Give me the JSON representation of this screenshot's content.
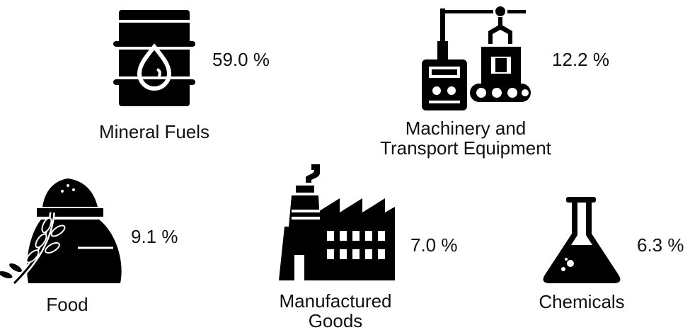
{
  "items": [
    {
      "label": [
        "Mineral Fuels"
      ],
      "value": "59.0 %"
    },
    {
      "label": [
        "Machinery and",
        "Transport Equipment"
      ],
      "value": "12.2 %"
    },
    {
      "label": [
        "Food"
      ],
      "value": "9.1 %"
    },
    {
      "label": [
        "Manufactured",
        "Goods"
      ],
      "value": "7.0 %"
    },
    {
      "label": [
        "Chemicals"
      ],
      "value": "6.3 %"
    }
  ]
}
